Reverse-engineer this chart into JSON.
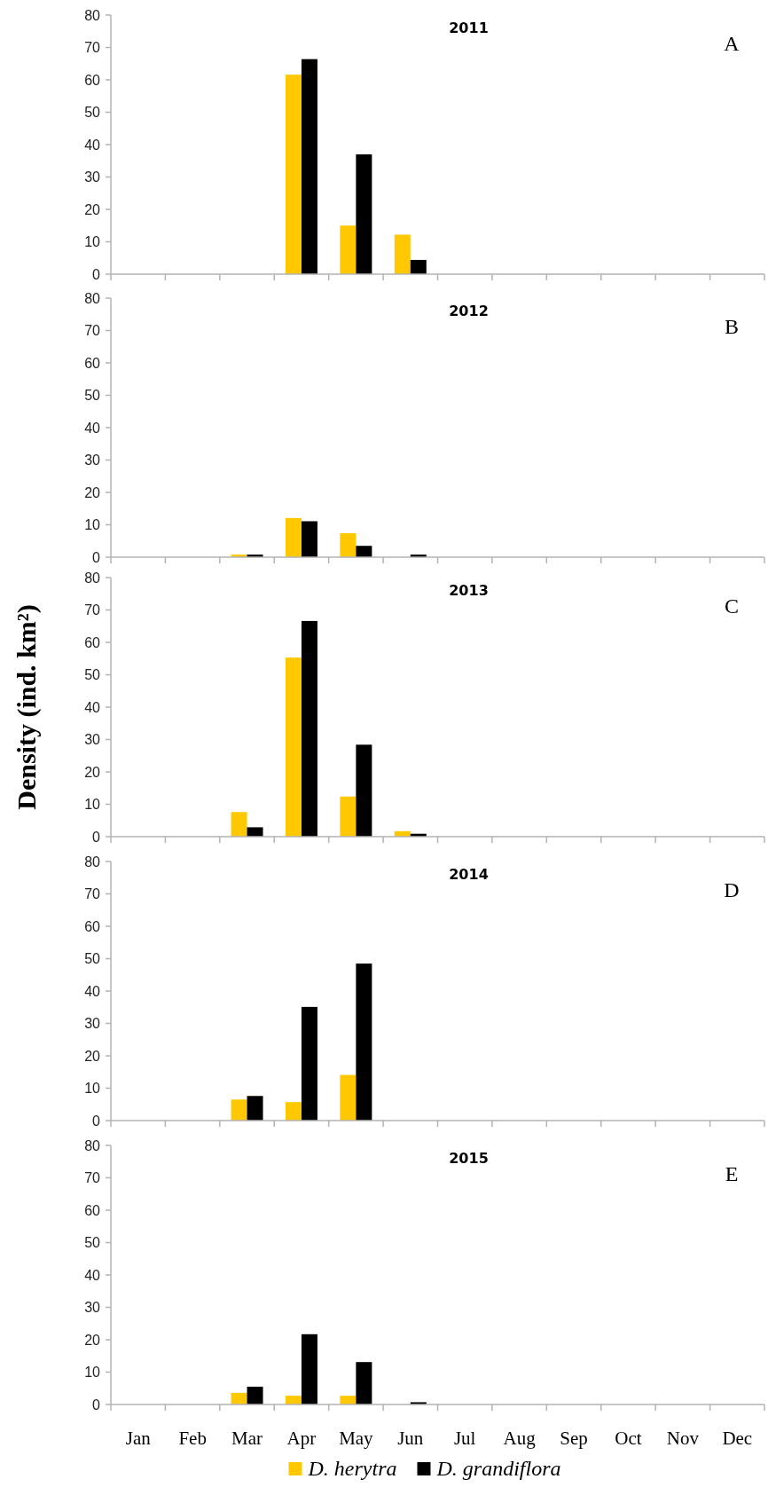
{
  "chart_data": [
    {
      "type": "bar",
      "title": "2011",
      "annotations": [
        "A"
      ],
      "categories": [
        null,
        null,
        null,
        null,
        null,
        null,
        null,
        null,
        null,
        null,
        null,
        null
      ],
      "series": [
        {
          "color": "#ffc800",
          "values": [
            0,
            0,
            0,
            61.6,
            15,
            12.2,
            0,
            0,
            0,
            0,
            0,
            0
          ]
        },
        {
          "color": "#000000",
          "values": [
            0,
            0,
            0,
            66.4,
            37,
            4.4,
            0,
            0,
            0,
            0,
            0,
            0
          ]
        }
      ],
      "ylim": [
        0,
        80
      ],
      "yticks": [
        0,
        10,
        20,
        30,
        40,
        50,
        60,
        70,
        80
      ],
      "tick_labels": "y"
    },
    {
      "type": "bar",
      "title": "2012",
      "annotations": [
        "B"
      ],
      "categories": [
        null,
        null,
        null,
        null,
        null,
        null,
        null,
        null,
        null,
        null,
        null,
        null
      ],
      "series": [
        {
          "color": "#ffc800",
          "values": [
            0,
            0,
            0.8,
            12.1,
            7.4,
            0,
            0,
            0,
            0,
            0,
            0,
            0
          ]
        },
        {
          "color": "#000000",
          "values": [
            0,
            0,
            0.8,
            11.1,
            3.5,
            0.8,
            0,
            0,
            0,
            0,
            0,
            0
          ]
        }
      ],
      "ylim": [
        0,
        80
      ],
      "yticks": [
        0,
        10,
        20,
        30,
        40,
        50,
        60,
        70,
        80
      ],
      "tick_labels": "y"
    },
    {
      "type": "bar",
      "title": "2013",
      "annotations": [
        "C"
      ],
      "ylabel": "Density (ind. km²)",
      "categories": [
        null,
        null,
        null,
        null,
        null,
        null,
        null,
        null,
        null,
        null,
        null,
        null
      ],
      "series": [
        {
          "color": "#ffc800",
          "values": [
            0,
            0,
            7.6,
            55.3,
            12.4,
            1.7,
            0,
            0,
            0,
            0,
            0,
            0
          ]
        },
        {
          "color": "#000000",
          "values": [
            0,
            0,
            2.9,
            66.6,
            28.4,
            0.9,
            0,
            0,
            0,
            0,
            0,
            0
          ]
        }
      ],
      "ylim": [
        0,
        80
      ],
      "yticks": [
        0,
        10,
        20,
        30,
        40,
        50,
        60,
        70,
        80
      ],
      "tick_labels": "y"
    },
    {
      "type": "bar",
      "title": "2014",
      "annotations": [
        "D"
      ],
      "categories": [
        null,
        null,
        null,
        null,
        null,
        null,
        null,
        null,
        null,
        null,
        null,
        null
      ],
      "series": [
        {
          "color": "#ffc800",
          "values": [
            0,
            0,
            6.5,
            5.7,
            14.1,
            0,
            0,
            0,
            0,
            0,
            0,
            0
          ]
        },
        {
          "color": "#000000",
          "values": [
            0,
            0,
            7.6,
            35.1,
            48.5,
            0,
            0,
            0,
            0,
            0,
            0,
            0
          ]
        }
      ],
      "ylim": [
        0,
        80
      ],
      "yticks": [
        0,
        10,
        20,
        30,
        40,
        50,
        60,
        70,
        80
      ],
      "tick_labels": "y"
    },
    {
      "type": "bar",
      "title": "2015",
      "annotations": [
        "E"
      ],
      "categories": [
        "Jan",
        "Feb",
        "Mar",
        "Apr",
        "May",
        "Jun",
        "Jul",
        "Aug",
        "Sep",
        "Oct",
        "Nov",
        "Dec"
      ],
      "series": [
        {
          "name": "D. herytra",
          "color": "#ffc800",
          "values": [
            0,
            0,
            3.6,
            2.7,
            2.7,
            0,
            0,
            0,
            0,
            0,
            0,
            0
          ]
        },
        {
          "name": "D. grandiflora",
          "color": "#000000",
          "values": [
            0,
            0,
            5.5,
            21.7,
            13.1,
            0.7,
            0,
            0,
            0,
            0,
            0,
            0
          ]
        }
      ],
      "ylim": [
        0,
        80
      ],
      "yticks": [
        0,
        10,
        20,
        30,
        40,
        50,
        60,
        70,
        80
      ],
      "legend": "bottom"
    }
  ]
}
